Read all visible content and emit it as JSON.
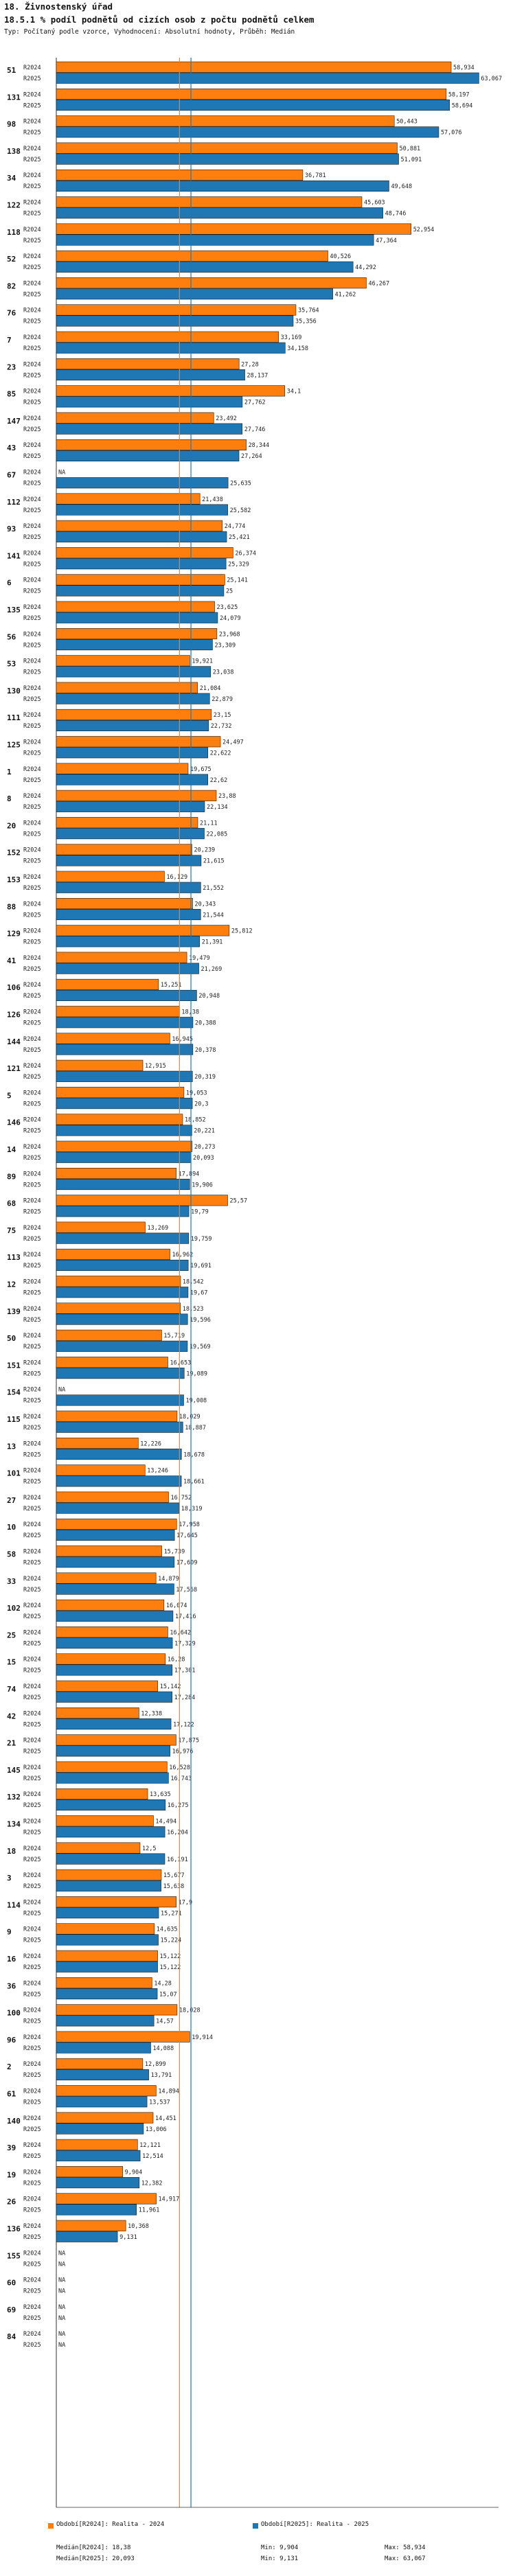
{
  "chart_data": {
    "type": "bar",
    "orientation": "horizontal",
    "title": "18. Živnostenský úřad",
    "subtitle": "18.5.1 % podíl podnětů od cizích osob z počtu podnětů celkem",
    "note": "Typ: Počítaný podle vzorce, Vyhodnocení: Absolutní hodnoty, Průběh: Medián",
    "series_names": [
      "R2024",
      "R2025"
    ],
    "colors": {
      "R2024": "#ff7f0e",
      "R2025": "#1f77b4",
      "median_R2024": "#ff7f0e",
      "median_R2025": "#1f77b4"
    },
    "xlim": [
      0,
      66
    ],
    "medians": {
      "R2024": 18.38,
      "R2025": 20.093
    },
    "categories": [
      {
        "id": "51",
        "R2024": "58,934",
        "R2025": "63,067"
      },
      {
        "id": "131",
        "R2024": "58,197",
        "R2025": "58,694"
      },
      {
        "id": "98",
        "R2024": "50,443",
        "R2025": "57,076"
      },
      {
        "id": "138",
        "R2024": "50,881",
        "R2025": "51,091"
      },
      {
        "id": "34",
        "R2024": "36,781",
        "R2025": "49,648"
      },
      {
        "id": "122",
        "R2024": "45,603",
        "R2025": "48,746"
      },
      {
        "id": "118",
        "R2024": "52,954",
        "R2025": "47,364"
      },
      {
        "id": "52",
        "R2024": "40,526",
        "R2025": "44,292"
      },
      {
        "id": "82",
        "R2024": "46,267",
        "R2025": "41,262"
      },
      {
        "id": "76",
        "R2024": "35,764",
        "R2025": "35,356"
      },
      {
        "id": "7",
        "R2024": "33,169",
        "R2025": "34,158"
      },
      {
        "id": "23",
        "R2024": "27,28",
        "R2025": "28,137"
      },
      {
        "id": "85",
        "R2024": "34,1",
        "R2025": "27,762"
      },
      {
        "id": "147",
        "R2024": "23,492",
        "R2025": "27,746"
      },
      {
        "id": "43",
        "R2024": "28,344",
        "R2025": "27,264"
      },
      {
        "id": "67",
        "R2024": "NA",
        "R2025": "25,635"
      },
      {
        "id": "112",
        "R2024": "21,438",
        "R2025": "25,582"
      },
      {
        "id": "93",
        "R2024": "24,774",
        "R2025": "25,421"
      },
      {
        "id": "141",
        "R2024": "26,374",
        "R2025": "25,329"
      },
      {
        "id": "6",
        "R2024": "25,141",
        "R2025": "25"
      },
      {
        "id": "135",
        "R2024": "23,625",
        "R2025": "24,079"
      },
      {
        "id": "56",
        "R2024": "23,968",
        "R2025": "23,309"
      },
      {
        "id": "53",
        "R2024": "19,921",
        "R2025": "23,038"
      },
      {
        "id": "130",
        "R2024": "21,084",
        "R2025": "22,879"
      },
      {
        "id": "111",
        "R2024": "23,15",
        "R2025": "22,732"
      },
      {
        "id": "125",
        "R2024": "24,497",
        "R2025": "22,622"
      },
      {
        "id": "1",
        "R2024": "19,675",
        "R2025": "22,62"
      },
      {
        "id": "8",
        "R2024": "23,88",
        "R2025": "22,134"
      },
      {
        "id": "20",
        "R2024": "21,11",
        "R2025": "22,085"
      },
      {
        "id": "152",
        "R2024": "20,239",
        "R2025": "21,615"
      },
      {
        "id": "153",
        "R2024": "16,129",
        "R2025": "21,552"
      },
      {
        "id": "88",
        "R2024": "20,343",
        "R2025": "21,544"
      },
      {
        "id": "129",
        "R2024": "25,812",
        "R2025": "21,391"
      },
      {
        "id": "41",
        "R2024": "19,479",
        "R2025": "21,269"
      },
      {
        "id": "106",
        "R2024": "15,251",
        "R2025": "20,948"
      },
      {
        "id": "126",
        "R2024": "18,38",
        "R2025": "20,388"
      },
      {
        "id": "144",
        "R2024": "16,945",
        "R2025": "20,378"
      },
      {
        "id": "121",
        "R2024": "12,915",
        "R2025": "20,319"
      },
      {
        "id": "5",
        "R2024": "19,053",
        "R2025": "20,3"
      },
      {
        "id": "146",
        "R2024": "18,852",
        "R2025": "20,221"
      },
      {
        "id": "14",
        "R2024": "20,273",
        "R2025": "20,093"
      },
      {
        "id": "89",
        "R2024": "17,894",
        "R2025": "19,906"
      },
      {
        "id": "68",
        "R2024": "25,57",
        "R2025": "19,79"
      },
      {
        "id": "75",
        "R2024": "13,269",
        "R2025": "19,759"
      },
      {
        "id": "113",
        "R2024": "16,962",
        "R2025": "19,691"
      },
      {
        "id": "12",
        "R2024": "18,542",
        "R2025": "19,67"
      },
      {
        "id": "139",
        "R2024": "18,523",
        "R2025": "19,596"
      },
      {
        "id": "50",
        "R2024": "15,719",
        "R2025": "19,569"
      },
      {
        "id": "151",
        "R2024": "16,653",
        "R2025": "19,089"
      },
      {
        "id": "154",
        "R2024": "NA",
        "R2025": "19,008"
      },
      {
        "id": "115",
        "R2024": "18,029",
        "R2025": "18,887"
      },
      {
        "id": "13",
        "R2024": "12,226",
        "R2025": "18,678"
      },
      {
        "id": "101",
        "R2024": "13,246",
        "R2025": "18,661"
      },
      {
        "id": "27",
        "R2024": "16,752",
        "R2025": "18,319"
      },
      {
        "id": "10",
        "R2024": "17,958",
        "R2025": "17,645"
      },
      {
        "id": "58",
        "R2024": "15,739",
        "R2025": "17,609"
      },
      {
        "id": "33",
        "R2024": "14,879",
        "R2025": "17,568"
      },
      {
        "id": "102",
        "R2024": "16,074",
        "R2025": "17,416"
      },
      {
        "id": "25",
        "R2024": "16,642",
        "R2025": "17,329"
      },
      {
        "id": "15",
        "R2024": "16,28",
        "R2025": "17,301"
      },
      {
        "id": "74",
        "R2024": "15,142",
        "R2025": "17,284"
      },
      {
        "id": "42",
        "R2024": "12,338",
        "R2025": "17,122"
      },
      {
        "id": "21",
        "R2024": "17,875",
        "R2025": "16,976"
      },
      {
        "id": "145",
        "R2024": "16,528",
        "R2025": "16,743"
      },
      {
        "id": "132",
        "R2024": "13,635",
        "R2025": "16,275"
      },
      {
        "id": "134",
        "R2024": "14,494",
        "R2025": "16,204"
      },
      {
        "id": "18",
        "R2024": "12,5",
        "R2025": "16,191"
      },
      {
        "id": "3",
        "R2024": "15,677",
        "R2025": "15,638"
      },
      {
        "id": "114",
        "R2024": "17,9",
        "R2025": "15,271"
      },
      {
        "id": "9",
        "R2024": "14,635",
        "R2025": "15,224"
      },
      {
        "id": "16",
        "R2024": "15,122",
        "R2025": "15,122"
      },
      {
        "id": "36",
        "R2024": "14,28",
        "R2025": "15,07"
      },
      {
        "id": "100",
        "R2024": "18,028",
        "R2025": "14,57"
      },
      {
        "id": "96",
        "R2024": "19,914",
        "R2025": "14,088"
      },
      {
        "id": "2",
        "R2024": "12,899",
        "R2025": "13,791"
      },
      {
        "id": "61",
        "R2024": "14,894",
        "R2025": "13,537"
      },
      {
        "id": "140",
        "R2024": "14,451",
        "R2025": "13,006"
      },
      {
        "id": "39",
        "R2024": "12,121",
        "R2025": "12,514"
      },
      {
        "id": "19",
        "R2024": "9,904",
        "R2025": "12,382"
      },
      {
        "id": "26",
        "R2024": "14,917",
        "R2025": "11,961"
      },
      {
        "id": "136",
        "R2024": "10,368",
        "R2025": "9,131"
      },
      {
        "id": "155",
        "R2024": "NA",
        "R2025": "NA"
      },
      {
        "id": "60",
        "R2024": "NA",
        "R2025": "NA"
      },
      {
        "id": "69",
        "R2024": "NA",
        "R2025": "NA"
      },
      {
        "id": "84",
        "R2024": "NA",
        "R2025": "NA"
      }
    ]
  },
  "footer": {
    "legend_r2024": "Období[R2024]: Realita - 2024",
    "legend_r2025": "Období[R2025]: Realita - 2025",
    "median_r2024": "Medián[R2024]: 18,38",
    "median_r2025": "Medián[R2025]: 20,093",
    "min_r2024": "Min: 9,904",
    "min_r2025": "Min: 9,131",
    "max_r2024": "Max: 58,934",
    "max_r2025": "Max: 63,067"
  }
}
